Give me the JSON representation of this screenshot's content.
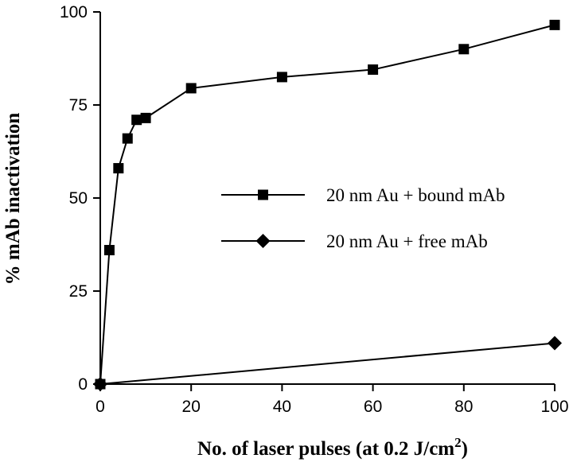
{
  "chart_data": {
    "type": "line",
    "xlabel": "No. of laser pulses (at 0.2 J/cm",
    "xlabel_sup": "2",
    "xlabel_close": ")",
    "ylabel": "% mAb inactivation",
    "xlim": [
      0,
      100
    ],
    "ylim": [
      0,
      100
    ],
    "xticks": [
      0,
      20,
      40,
      60,
      80,
      100
    ],
    "yticks": [
      0,
      25,
      50,
      75,
      100
    ],
    "xtick_labels": [
      "0",
      "20",
      "40",
      "60",
      "80",
      "100"
    ],
    "ytick_labels": [
      "0",
      "25",
      "50",
      "75",
      "100"
    ],
    "legend_position": "center-right",
    "grid": false,
    "series": [
      {
        "name": "20 nm Au + bound mAb",
        "marker": "square",
        "color": "#000000",
        "x": [
          0,
          2,
          4,
          6,
          8,
          10,
          20,
          40,
          60,
          80,
          100
        ],
        "y": [
          0,
          36,
          58,
          66,
          71,
          71.5,
          79.5,
          82.5,
          84.5,
          90,
          96.5
        ]
      },
      {
        "name": "20 nm Au + free mAb",
        "marker": "diamond",
        "color": "#000000",
        "x": [
          0,
          100
        ],
        "y": [
          0,
          11
        ]
      }
    ]
  }
}
